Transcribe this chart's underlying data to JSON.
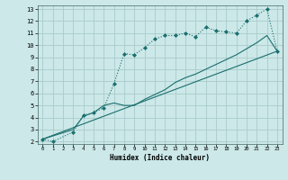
{
  "xlabel": "Humidex (Indice chaleur)",
  "bg_color": "#cce8e8",
  "grid_color": "#aacccc",
  "line_color": "#1a6e6e",
  "xlim": [
    -0.5,
    23.5
  ],
  "ylim": [
    1.8,
    13.3
  ],
  "xticks": [
    0,
    1,
    2,
    3,
    4,
    5,
    6,
    7,
    8,
    9,
    10,
    11,
    12,
    13,
    14,
    15,
    16,
    17,
    18,
    19,
    20,
    21,
    22,
    23
  ],
  "yticks": [
    2,
    3,
    4,
    5,
    6,
    7,
    8,
    9,
    10,
    11,
    12,
    13
  ],
  "line1_x": [
    0,
    1,
    3,
    4,
    5,
    6,
    7,
    8,
    9,
    10,
    11,
    12,
    13,
    14,
    15,
    16,
    17,
    18,
    19,
    20,
    21,
    22,
    23
  ],
  "line1_y": [
    2.2,
    2.0,
    2.8,
    4.2,
    4.4,
    4.8,
    6.8,
    9.3,
    9.2,
    9.8,
    10.5,
    10.8,
    10.8,
    11.0,
    10.7,
    11.5,
    11.2,
    11.1,
    11.0,
    12.0,
    12.5,
    13.0,
    9.5
  ],
  "line2_x": [
    0,
    3,
    4,
    5,
    6,
    7,
    8,
    9,
    10,
    11,
    12,
    13,
    14,
    15,
    16,
    17,
    18,
    19,
    20,
    21,
    22,
    23
  ],
  "line2_y": [
    2.2,
    3.0,
    4.1,
    4.4,
    5.0,
    5.2,
    5.0,
    5.0,
    5.5,
    5.9,
    6.3,
    6.9,
    7.3,
    7.6,
    8.0,
    8.4,
    8.8,
    9.2,
    9.7,
    10.2,
    10.8,
    9.5
  ],
  "line3_x": [
    0,
    23
  ],
  "line3_y": [
    2.2,
    9.5
  ]
}
